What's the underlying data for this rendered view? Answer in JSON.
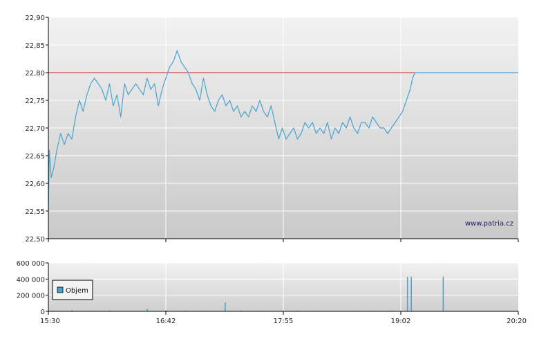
{
  "watermark": "www.patria.cz",
  "colors": {
    "price_line": "#4aa3cf",
    "reference_line": "#cc2222",
    "volume_bar": "#4aa3cf",
    "grid": "#ffffff",
    "axis": "#000000"
  },
  "chart_data": [
    {
      "type": "line",
      "title": "",
      "xlabel": "",
      "ylabel": "",
      "x_ticks": [
        "15:30",
        "16:42",
        "17:55",
        "19:02",
        "20:20"
      ],
      "y_ticks": [
        "22,50",
        "22,55",
        "22,60",
        "22,65",
        "22,70",
        "22,75",
        "22,80",
        "22,85",
        "22,90"
      ],
      "ylim": [
        22.5,
        22.9
      ],
      "grid": true,
      "reference_value": 22.8,
      "series": [
        {
          "x": [
            0.0,
            0.002,
            0.006,
            0.012,
            0.018,
            0.026,
            0.034,
            0.042,
            0.05,
            0.058,
            0.066,
            0.074,
            0.082,
            0.09,
            0.098,
            0.106,
            0.114,
            0.122,
            0.13,
            0.138,
            0.146,
            0.154,
            0.162,
            0.17,
            0.178,
            0.186,
            0.194,
            0.202,
            0.21,
            0.218,
            0.226,
            0.234,
            0.242,
            0.25,
            0.258,
            0.266,
            0.274,
            0.282,
            0.29,
            0.298,
            0.306,
            0.314,
            0.322,
            0.33,
            0.338,
            0.346,
            0.354,
            0.362,
            0.37,
            0.378,
            0.386,
            0.394,
            0.402,
            0.41,
            0.418,
            0.426,
            0.434,
            0.442,
            0.45,
            0.458,
            0.466,
            0.474,
            0.482,
            0.49,
            0.498,
            0.506,
            0.514,
            0.522,
            0.53,
            0.538,
            0.546,
            0.554,
            0.562,
            0.57,
            0.578,
            0.586,
            0.594,
            0.602,
            0.61,
            0.618,
            0.626,
            0.634,
            0.642,
            0.65,
            0.658,
            0.666,
            0.674,
            0.682,
            0.69,
            0.698,
            0.706,
            0.714,
            0.722,
            0.73,
            0.738,
            0.746,
            0.754,
            0.762,
            0.77,
            0.775,
            0.78,
            1.0
          ],
          "values": [
            22.55,
            22.66,
            22.61,
            22.63,
            22.66,
            22.69,
            22.67,
            22.69,
            22.68,
            22.72,
            22.75,
            22.73,
            22.76,
            22.78,
            22.79,
            22.78,
            22.77,
            22.75,
            22.78,
            22.74,
            22.76,
            22.72,
            22.78,
            22.76,
            22.77,
            22.78,
            22.77,
            22.76,
            22.79,
            22.77,
            22.78,
            22.74,
            22.77,
            22.79,
            22.81,
            22.82,
            22.84,
            22.82,
            22.81,
            22.8,
            22.78,
            22.77,
            22.75,
            22.79,
            22.76,
            22.74,
            22.73,
            22.75,
            22.76,
            22.74,
            22.75,
            22.73,
            22.74,
            22.72,
            22.73,
            22.72,
            22.74,
            22.73,
            22.75,
            22.73,
            22.72,
            22.74,
            22.71,
            22.68,
            22.7,
            22.68,
            22.69,
            22.7,
            22.68,
            22.69,
            22.71,
            22.7,
            22.71,
            22.69,
            22.7,
            22.69,
            22.71,
            22.68,
            22.7,
            22.69,
            22.71,
            22.7,
            22.72,
            22.7,
            22.69,
            22.71,
            22.71,
            22.7,
            22.72,
            22.71,
            22.7,
            22.7,
            22.69,
            22.7,
            22.71,
            22.72,
            22.73,
            22.75,
            22.77,
            22.79,
            22.8,
            22.8
          ]
        }
      ]
    },
    {
      "type": "bar",
      "title": "",
      "xlabel": "",
      "ylabel": "",
      "x_ticks": [
        "15:30",
        "16:42",
        "17:55",
        "19:02",
        "20:20"
      ],
      "y_ticks": [
        "0",
        "200 000",
        "400 000",
        "600 000"
      ],
      "ylim": [
        0,
        600000
      ],
      "grid": true,
      "legend": {
        "position": "left",
        "entries": [
          "Objem"
        ]
      },
      "series": [
        {
          "name": "Objem",
          "x": [
            0.01,
            0.05,
            0.09,
            0.13,
            0.17,
            0.21,
            0.25,
            0.29,
            0.33,
            0.37,
            0.376,
            0.41,
            0.45,
            0.49,
            0.53,
            0.57,
            0.61,
            0.65,
            0.69,
            0.73,
            0.764,
            0.772,
            0.84
          ],
          "values": [
            8000,
            15000,
            6000,
            12000,
            4000,
            30000,
            10000,
            8000,
            5000,
            6000,
            110000,
            9000,
            7000,
            5000,
            8000,
            6000,
            4000,
            7000,
            5000,
            9000,
            430000,
            430000,
            430000
          ]
        }
      ]
    }
  ]
}
